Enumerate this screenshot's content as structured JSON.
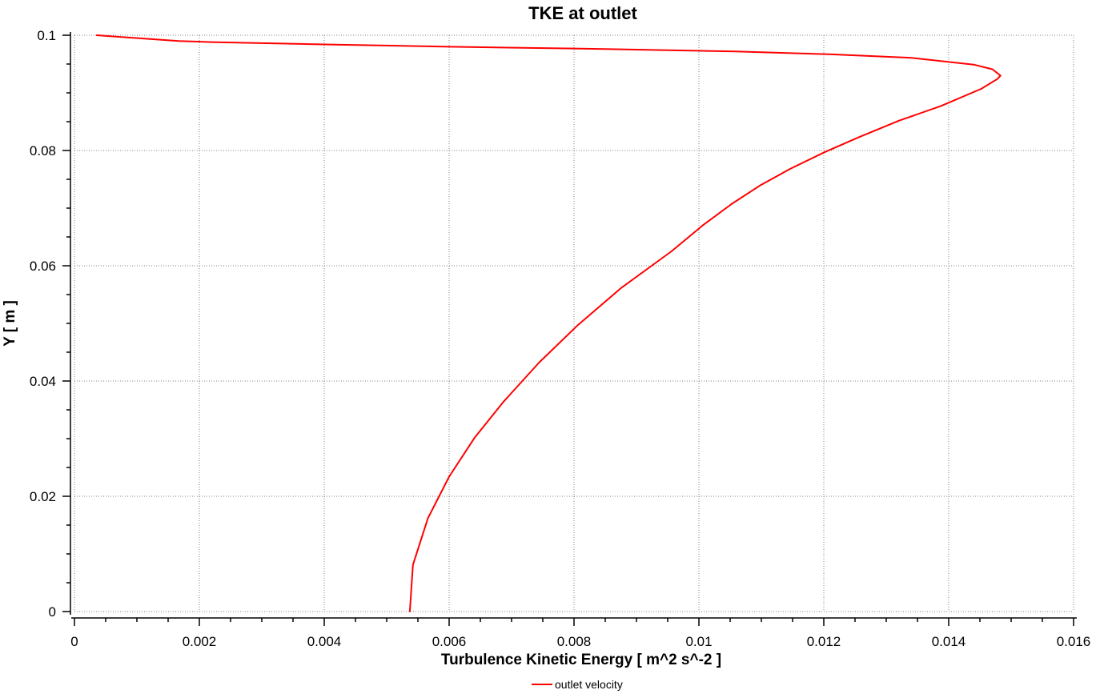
{
  "chart_data": {
    "type": "line",
    "title": "TKE at outlet",
    "xlabel": "Turbulence Kinetic Energy [ m^2 s^-2 ]",
    "ylabel": "Y [ m ]",
    "xlim": [
      0,
      0.016
    ],
    "ylim": [
      0,
      0.1
    ],
    "x_ticks": [
      "0",
      "0.002",
      "0.004",
      "0.006",
      "0.008",
      "0.01",
      "0.012",
      "0.014",
      "0.016"
    ],
    "y_ticks": [
      "0",
      "0.02",
      "0.04",
      "0.06",
      "0.08",
      "0.1"
    ],
    "grid": true,
    "legend_position": "bottom-center",
    "series": [
      {
        "name": "outlet velocity",
        "color": "#ff0000",
        "points": [
          [
            0.00537,
            0.0
          ],
          [
            0.00542,
            0.0081
          ],
          [
            0.00566,
            0.0162
          ],
          [
            0.006,
            0.0234
          ],
          [
            0.00641,
            0.0302
          ],
          [
            0.00687,
            0.0364
          ],
          [
            0.00744,
            0.0432
          ],
          [
            0.00806,
            0.0497
          ],
          [
            0.00876,
            0.0562
          ],
          [
            0.00956,
            0.0625
          ],
          [
            0.01006,
            0.067
          ],
          [
            0.01052,
            0.0707
          ],
          [
            0.01099,
            0.074
          ],
          [
            0.01146,
            0.0768
          ],
          [
            0.01201,
            0.0797
          ],
          [
            0.01256,
            0.0823
          ],
          [
            0.01321,
            0.0852
          ],
          [
            0.01387,
            0.0877
          ],
          [
            0.01452,
            0.0907
          ],
          [
            0.01478,
            0.0924
          ],
          [
            0.01483,
            0.093
          ],
          [
            0.0147,
            0.0941
          ],
          [
            0.0144,
            0.0949
          ],
          [
            0.01338,
            0.0961
          ],
          [
            0.01208,
            0.0967
          ],
          [
            0.01057,
            0.0972
          ],
          [
            0.008,
            0.0977
          ],
          [
            0.006,
            0.098
          ],
          [
            0.004,
            0.0984
          ],
          [
            0.0022,
            0.0988
          ],
          [
            0.00167,
            0.099
          ],
          [
            0.00035,
            0.1
          ]
        ]
      }
    ]
  }
}
